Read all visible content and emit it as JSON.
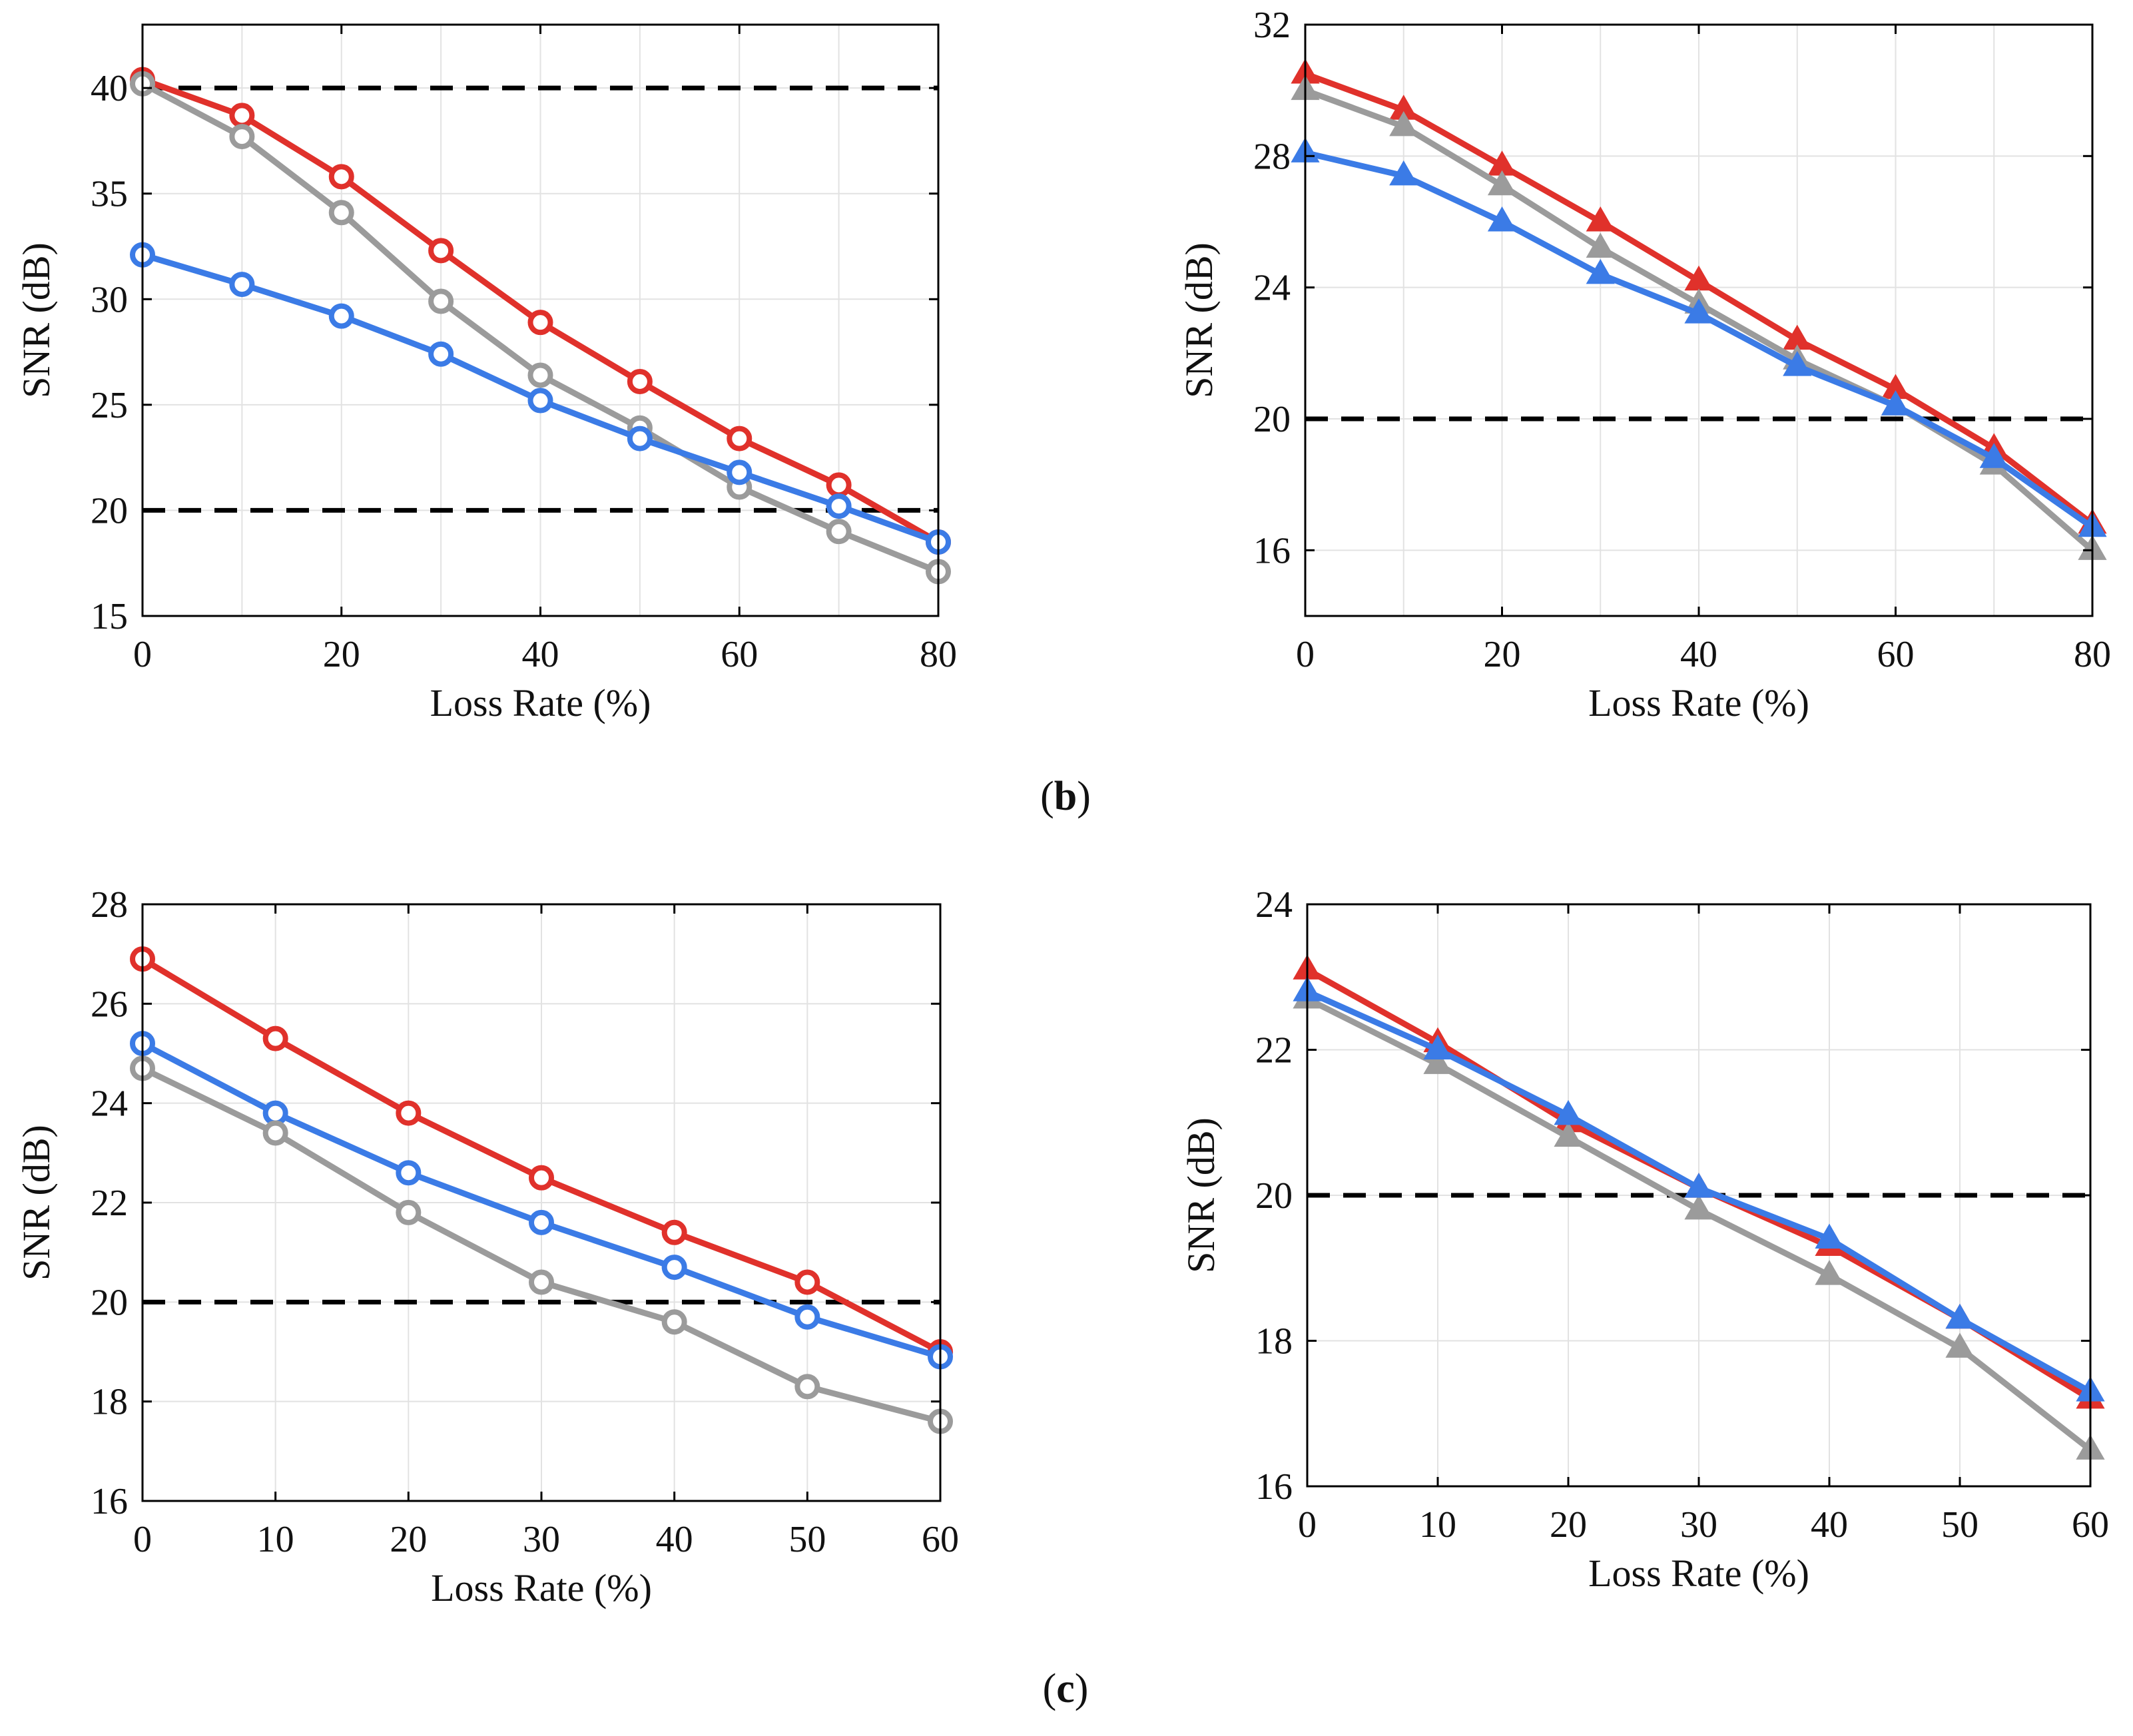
{
  "captions": {
    "b": {
      "open": "(",
      "letter": "b",
      "close": ")"
    },
    "c": {
      "open": "(",
      "letter": "c",
      "close": ")"
    }
  },
  "colors": {
    "red": "#e0312b",
    "blue": "#3b7be6",
    "gray": "#9b9b9b",
    "reference": "#000000",
    "grid": "#e2e2e2",
    "axes": "#000000"
  },
  "chart_data": [
    {
      "type": "line",
      "title": "",
      "xlabel": "Loss Rate (%)",
      "ylabel": "SNR (dB)",
      "xlim": [
        0,
        80
      ],
      "ylim": [
        15,
        43
      ],
      "xticks": [
        0,
        20,
        40,
        60,
        80
      ],
      "yticks": [
        15,
        20,
        25,
        30,
        35,
        40
      ],
      "grid": true,
      "marker": "circle",
      "x": [
        0,
        10,
        20,
        30,
        40,
        50,
        60,
        70,
        80
      ],
      "series": [
        {
          "color": "red",
          "values": [
            40.4,
            38.7,
            35.8,
            32.3,
            28.9,
            26.1,
            23.4,
            21.2,
            18.5
          ]
        },
        {
          "color": "gray",
          "values": [
            40.2,
            37.7,
            34.1,
            29.9,
            26.4,
            23.9,
            21.1,
            19.0,
            17.1
          ]
        },
        {
          "color": "blue",
          "values": [
            32.1,
            30.7,
            29.2,
            27.4,
            25.2,
            23.4,
            21.8,
            20.2,
            18.5
          ]
        }
      ],
      "reference_lines": [
        40,
        20
      ]
    },
    {
      "type": "line",
      "title": "",
      "xlabel": "Loss Rate (%)",
      "ylabel": "SNR (dB)",
      "xlim": [
        0,
        80
      ],
      "ylim": [
        14,
        32
      ],
      "xticks": [
        0,
        20,
        40,
        60,
        80
      ],
      "yticks": [
        16,
        20,
        24,
        28,
        32
      ],
      "grid": true,
      "marker": "triangle",
      "x": [
        0,
        10,
        20,
        30,
        40,
        50,
        60,
        70,
        80
      ],
      "series": [
        {
          "color": "red",
          "values": [
            30.5,
            29.4,
            27.7,
            26.0,
            24.2,
            22.4,
            20.9,
            19.1,
            16.8
          ]
        },
        {
          "color": "gray",
          "values": [
            30.0,
            28.9,
            27.1,
            25.2,
            23.5,
            21.8,
            20.4,
            18.6,
            16.0
          ]
        },
        {
          "color": "blue",
          "values": [
            28.1,
            27.4,
            26.0,
            24.4,
            23.2,
            21.6,
            20.4,
            18.8,
            16.7
          ]
        }
      ],
      "reference_lines": [
        20
      ]
    },
    {
      "type": "line",
      "title": "",
      "xlabel": "Loss Rate (%)",
      "ylabel": "SNR (dB)",
      "xlim": [
        0,
        60
      ],
      "ylim": [
        16,
        28
      ],
      "xticks": [
        0,
        10,
        20,
        30,
        40,
        50,
        60
      ],
      "yticks": [
        16,
        18,
        20,
        22,
        24,
        26,
        28
      ],
      "grid": true,
      "marker": "circle",
      "x": [
        0,
        10,
        20,
        30,
        40,
        50,
        60
      ],
      "series": [
        {
          "color": "red",
          "values": [
            26.9,
            25.3,
            23.8,
            22.5,
            21.4,
            20.4,
            19.0
          ]
        },
        {
          "color": "blue",
          "values": [
            25.2,
            23.8,
            22.6,
            21.6,
            20.7,
            19.7,
            18.9
          ]
        },
        {
          "color": "gray",
          "values": [
            24.7,
            23.4,
            21.8,
            20.4,
            19.6,
            18.3,
            17.6
          ]
        }
      ],
      "reference_lines": [
        20
      ]
    },
    {
      "type": "line",
      "title": "",
      "xlabel": "Loss Rate (%)",
      "ylabel": "SNR (dB)",
      "xlim": [
        0,
        60
      ],
      "ylim": [
        16,
        24
      ],
      "xticks": [
        0,
        10,
        20,
        30,
        40,
        50,
        60
      ],
      "yticks": [
        16,
        18,
        20,
        22,
        24
      ],
      "grid": true,
      "marker": "triangle",
      "x": [
        0,
        10,
        20,
        30,
        40,
        50,
        60
      ],
      "series": [
        {
          "color": "red",
          "values": [
            23.1,
            22.1,
            21.0,
            20.1,
            19.3,
            18.3,
            17.2
          ]
        },
        {
          "color": "gray",
          "values": [
            22.7,
            21.8,
            20.8,
            19.8,
            18.9,
            17.9,
            16.5
          ]
        },
        {
          "color": "blue",
          "values": [
            22.8,
            22.0,
            21.1,
            20.1,
            19.4,
            18.3,
            17.3
          ]
        }
      ],
      "reference_lines": [
        20
      ]
    }
  ]
}
